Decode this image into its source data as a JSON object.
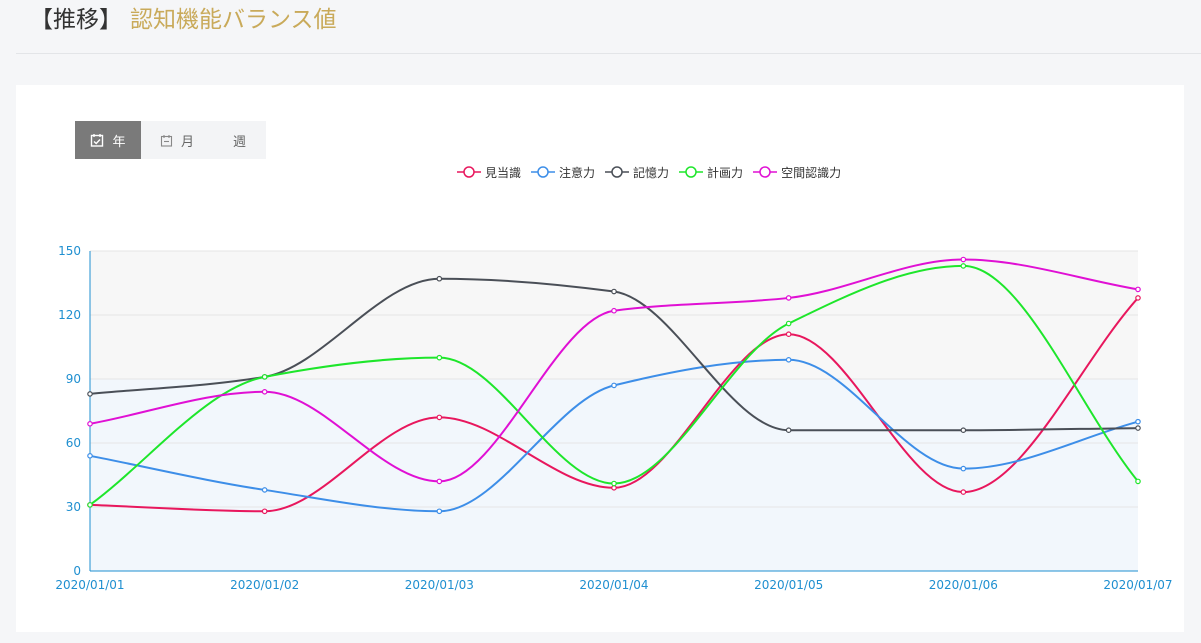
{
  "header": {
    "bracket_label": "【推移】",
    "title": "認知機能バランス値"
  },
  "tabs": [
    {
      "label": "年",
      "icon": "calendar-check-icon",
      "active": true
    },
    {
      "label": "月",
      "icon": "calendar-icon",
      "active": false
    },
    {
      "label": "週",
      "active": false
    }
  ],
  "chart_data": {
    "type": "line",
    "x": [
      "2020/01/01",
      "2020/01/02",
      "2020/01/03",
      "2020/01/04",
      "2020/01/05",
      "2020/01/06",
      "2020/01/07"
    ],
    "ylim": [
      0,
      150
    ],
    "yticks": [
      0,
      30,
      60,
      90,
      120,
      150
    ],
    "legend_position": "top-center",
    "grid": true,
    "series": [
      {
        "name": "見当識",
        "color": "#e8175d",
        "values": [
          31,
          28,
          72,
          39,
          111,
          37,
          128
        ]
      },
      {
        "name": "注意力",
        "color": "#3d8ee8",
        "values": [
          54,
          38,
          28,
          87,
          99,
          48,
          70
        ]
      },
      {
        "name": "記憶力",
        "color": "#4a4f57",
        "values": [
          83,
          91,
          137,
          131,
          66,
          66,
          67
        ]
      },
      {
        "name": "計画力",
        "color": "#1ee62b",
        "values": [
          31,
          91,
          100,
          41,
          116,
          143,
          42
        ]
      },
      {
        "name": "空間認識力",
        "color": "#e010d4",
        "values": [
          69,
          84,
          42,
          122,
          128,
          146,
          132
        ]
      }
    ]
  }
}
